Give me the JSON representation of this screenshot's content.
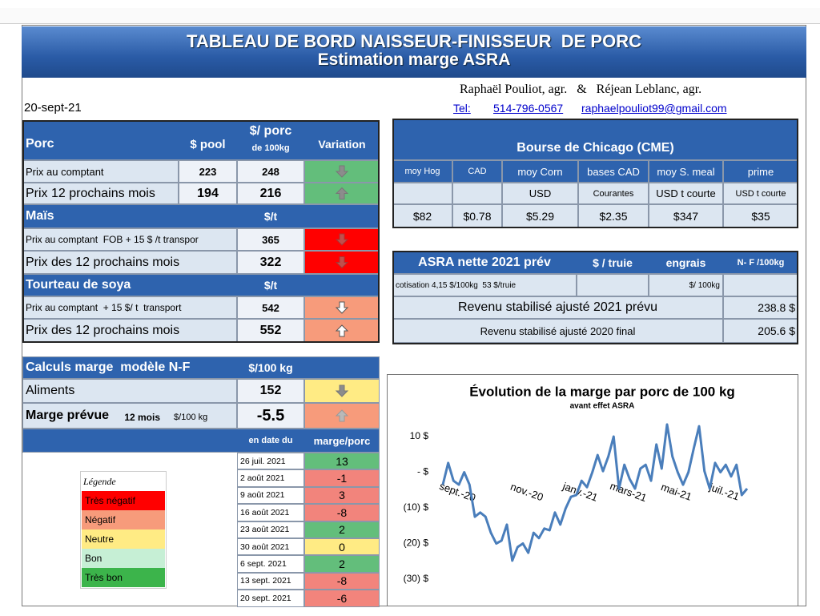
{
  "header": {
    "title": "TABLEAU DE BORD NAISSEUR-FINISSEUR  DE PORC",
    "subtitle": "Estimation marge ASRA"
  },
  "date": "20-sept-21",
  "authors": "Raphaël Pouliot, agr.   &   Réjean Leblanc, agr.",
  "contact": {
    "tel_label": "Tel:",
    "phone": "514-796-0567",
    "email": "raphaelpouliot99@gmail.com"
  },
  "porc": {
    "header": [
      "Porc",
      "$ pool",
      "$/ porc",
      "de 100kg",
      "Variation"
    ],
    "rows": [
      [
        "Prix au comptant",
        "223",
        "248"
      ],
      [
        "Prix 12 prochains mois",
        "194",
        "216"
      ]
    ]
  },
  "mais": {
    "header": [
      "Maïs",
      "$/t"
    ],
    "rows": [
      [
        "Prix au comptant  FOB + 15 $ /t transpor",
        "365"
      ],
      [
        "Prix des 12 prochains mois",
        "322"
      ]
    ]
  },
  "soya": {
    "header": [
      "Tourteau de soya",
      "$/t"
    ],
    "rows": [
      [
        "Prix au comptant  + 15 $/ t  transport",
        "542"
      ],
      [
        "Prix des 12 prochains mois",
        "552"
      ]
    ]
  },
  "chicago": {
    "title": "Bourse de Chicago (CME)",
    "columns": [
      "moy Hog",
      "CAD",
      "moy Corn",
      "bases CAD",
      "moy S. meal",
      "prime"
    ],
    "units": [
      "USD",
      "Courantes",
      "USD t courte",
      "USD t courte"
    ],
    "values": [
      "$82",
      "$0.78",
      "$5.29",
      "$2.35",
      "$347",
      "$35"
    ]
  },
  "asra": {
    "header": [
      "ASRA nette 2021 prév",
      "$ / truie",
      "engrais",
      "N- F /100kg"
    ],
    "cotisation": "cotisation 4,15 $/100kg  53 $/truie",
    "engrais_unit": "$/ 100kg",
    "rows": [
      [
        "Revenu stabilisé ajusté 2021 prévu",
        "238.8 $"
      ],
      [
        "Revenu stabilisé ajusté 2020 final",
        "205.6 $"
      ]
    ]
  },
  "calculs": {
    "header": [
      "Calculs marge  modèle N-F",
      "$/100 kg"
    ],
    "aliments": [
      "Aliments",
      "152"
    ],
    "marge": {
      "label": "Marge prévue",
      "period": " 12 mois",
      "unit": " $/100 kg",
      "value": "-5.5"
    }
  },
  "history": {
    "header": [
      "en date du",
      "marge/porc"
    ],
    "rows": [
      [
        "26 juil. 2021",
        "13"
      ],
      [
        "2 août 2021",
        "-1"
      ],
      [
        "9 août 2021",
        "3"
      ],
      [
        "16 août 2021",
        "-8"
      ],
      [
        "23 août 2021",
        "2"
      ],
      [
        "30 août 2021",
        "0"
      ],
      [
        "6 sept. 2021",
        "2"
      ],
      [
        "13 sept. 2021",
        "-8"
      ],
      [
        "20 sept. 2021",
        "-6"
      ]
    ]
  },
  "legend": {
    "title": "Légende",
    "items": [
      "Très négatif",
      "Négatif",
      "Neutre",
      "Bon",
      "Très bon"
    ]
  },
  "chart_data": {
    "type": "line",
    "title": "Évolution de la marge par porc de 100 kg",
    "subtitle": "avant effet ASRA",
    "color": "#4a7ebb",
    "grid": false,
    "categories": [
      "sept.-20",
      null,
      null,
      null,
      null,
      null,
      null,
      null,
      null,
      null,
      null,
      null,
      null,
      "nov.-20",
      null,
      null,
      null,
      null,
      null,
      null,
      null,
      null,
      null,
      "janv.-21",
      null,
      null,
      null,
      null,
      null,
      null,
      null,
      null,
      "mars-21",
      null,
      null,
      null,
      null,
      null,
      null,
      null,
      null,
      "mai-21",
      null,
      null,
      null,
      null,
      null,
      null,
      null,
      null,
      "juil.-21",
      null,
      null,
      null,
      null,
      null,
      null,
      null
    ],
    "values": [
      -3.5,
      2.6,
      -2.4,
      -3.5,
      0,
      -3.5,
      -12.5,
      -11.3,
      -12.5,
      -17,
      -20,
      -19.2,
      -14.7,
      -24.8,
      -21,
      -20,
      -22.6,
      -17,
      -18.5,
      -15.8,
      -16.3,
      -11.3,
      -14.7,
      -10.2,
      -6.9,
      -6.4,
      -2.4,
      -4.2,
      0,
      4.8,
      0.3,
      4.4,
      10,
      -4.6,
      2.1,
      -1.9,
      -4.6,
      1,
      2.1,
      -2.4,
      7.8,
      1,
      13.4,
      4.4,
      0,
      -3.5,
      0,
      6.6,
      12.9,
      0.3,
      -4.6,
      2.6,
      0,
      2.1,
      -1.2,
      2.1,
      -6.4,
      -4.6
    ],
    "ylim": [
      -30,
      15
    ],
    "yticks": [
      {
        "value": 10,
        "label": "10 $"
      },
      {
        "value": 0,
        "label": "-   $"
      },
      {
        "value": -10,
        "label": "(10) $"
      },
      {
        "value": -20,
        "label": "(20) $"
      },
      {
        "value": -30,
        "label": "(30) $"
      }
    ]
  }
}
